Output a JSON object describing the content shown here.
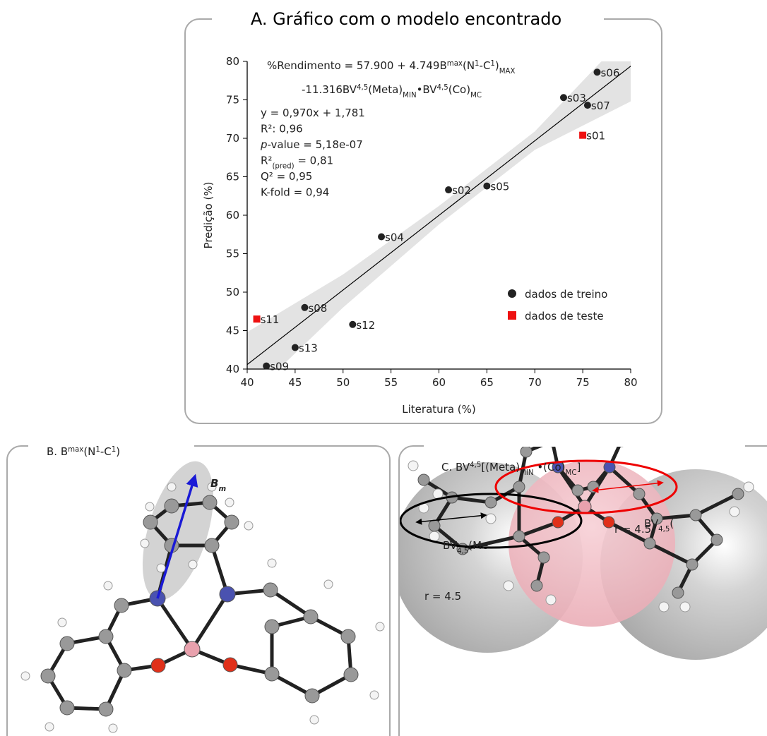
{
  "chart_data": {
    "type": "scatter",
    "title": "A. Gráfico com o modelo encontrado",
    "x_label": "Literatura (%)",
    "y_label": "Predição (%)",
    "xlim": [
      40,
      80
    ],
    "ylim": [
      40,
      80
    ],
    "xticks": [
      40,
      45,
      50,
      55,
      60,
      65,
      70,
      75,
      80
    ],
    "yticks": [
      40,
      45,
      50,
      55,
      60,
      65,
      70,
      75,
      80
    ],
    "series": [
      {
        "name": "dados de treino",
        "color": "#222222",
        "marker": "circle",
        "x": [
          76.5,
          73,
          75.5,
          61,
          65,
          54,
          46,
          51,
          45,
          42
        ],
        "values": [
          78.6,
          75.3,
          74.3,
          63.3,
          63.8,
          57.2,
          48,
          45.8,
          42.8,
          40.4
        ],
        "labels": [
          "s06",
          "s03",
          "s07",
          "s02",
          "s05",
          "s04",
          "s08",
          "s12",
          "s13",
          "s09"
        ]
      },
      {
        "name": "dados de teste",
        "color": "#ee1111",
        "marker": "square",
        "x": [
          75,
          41
        ],
        "values": [
          70.4,
          46.5
        ],
        "labels": [
          "s01",
          "s11"
        ]
      }
    ],
    "fit": {
      "slope": 0.97,
      "intercept": 1.781,
      "color": "#000000"
    },
    "band": {
      "x": [
        40,
        50,
        60,
        70,
        80
      ],
      "lower": [
        36.1,
        48.0,
        58.8,
        68.5,
        74.8
      ],
      "upper": [
        44.8,
        52.3,
        61.2,
        70.9,
        84.0
      ],
      "color": "#e3e3e3"
    },
    "equation": [
      [
        {
          "t": "%Rendimento = 57.900 + 4.749B"
        },
        {
          "t": "max",
          "pos": "sup"
        },
        {
          "t": "(N"
        },
        {
          "t": "1",
          "pos": "sup"
        },
        {
          "t": "-C"
        },
        {
          "t": "1",
          "pos": "sup"
        },
        {
          "t": ")"
        },
        {
          "t": "MAX",
          "pos": "sub"
        }
      ],
      [
        {
          "t": "-11.316BV"
        },
        {
          "t": "4,5",
          "pos": "sup"
        },
        {
          "t": "(Meta)"
        },
        {
          "t": "MIN",
          "pos": "sub"
        },
        {
          "t": "•BV"
        },
        {
          "t": "4,5",
          "pos": "sup"
        },
        {
          "t": "(Co)"
        },
        {
          "t": "MC",
          "pos": "sub"
        }
      ]
    ],
    "stats": [
      [
        {
          "t": "y = 0,970x + 1,781"
        }
      ],
      [
        {
          "t": "R²: 0,96"
        }
      ],
      [
        {
          "t": "p",
          "style": "italic"
        },
        {
          "t": "-value = 5,18e-07"
        }
      ],
      [
        {
          "t": "R²"
        },
        {
          "t": "(pred)",
          "pos": "sub"
        },
        {
          "t": " = 0,81"
        }
      ],
      [
        {
          "t": "Q² = 0,95"
        }
      ],
      [
        {
          "t": "K-fold = 0,94"
        }
      ]
    ],
    "legend": "lower right"
  },
  "panel_b": {
    "title": [
      {
        "t": "B. B"
      },
      {
        "t": "max",
        "pos": "sup"
      },
      {
        "t": "(N"
      },
      {
        "t": "1",
        "pos": "sup"
      },
      {
        "t": "-C"
      },
      {
        "t": "1",
        "pos": "sup"
      },
      {
        "t": ")"
      }
    ],
    "vector_label": [
      {
        "t": "B"
      },
      {
        "t": "m",
        "pos": "sub"
      }
    ]
  },
  "panel_c": {
    "title": [
      {
        "t": "C. BV"
      },
      {
        "t": "4,5",
        "pos": "sup"
      },
      {
        "t": "[(Meta)"
      },
      {
        "t": "MIN",
        "pos": "sub"
      },
      {
        "t": " •(Co)"
      },
      {
        "t": "MC",
        "pos": "sub"
      },
      {
        "t": "]"
      }
    ],
    "label_meta": [
      {
        "t": "BV"
      },
      {
        "t": "4,5",
        "pos": "sub"
      },
      {
        "t": "(Me"
      }
    ],
    "label_co": [
      {
        "t": "BV"
      },
      {
        "t": "4,5",
        "pos": "sub"
      },
      {
        "t": "("
      }
    ],
    "radius_meta": "r = 4.5",
    "radius_co": "r = 4.5"
  }
}
